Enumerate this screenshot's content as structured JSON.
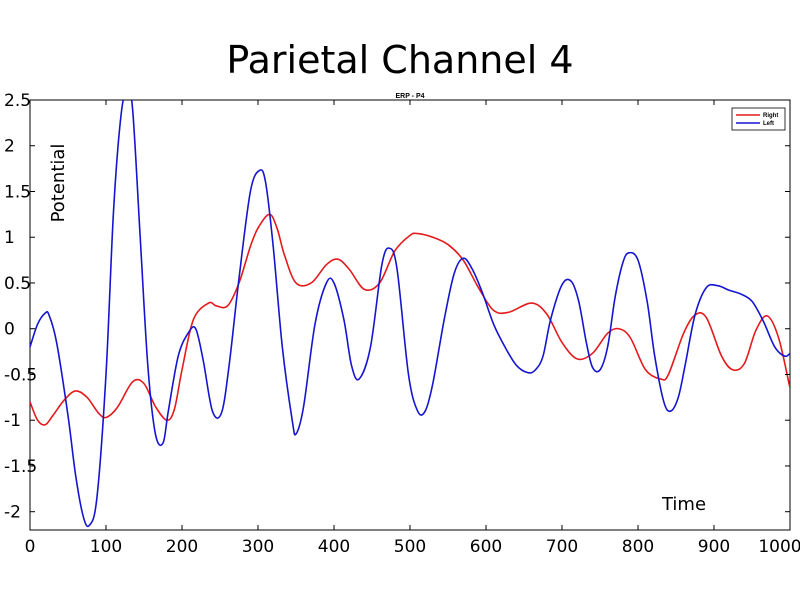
{
  "page_title": "Parietal Channel 4",
  "chart_data": {
    "type": "line",
    "title": "ERP - P4",
    "xlabel": "Time",
    "ylabel": "Potential",
    "xlim": [
      0,
      1000
    ],
    "ylim": [
      -2.2,
      2.5
    ],
    "x_ticks": [
      0,
      100,
      200,
      300,
      400,
      500,
      600,
      700,
      800,
      900,
      1000
    ],
    "y_ticks": [
      -2,
      -1.5,
      -1,
      -0.5,
      0,
      0.5,
      1,
      1.5,
      2,
      2.5
    ],
    "grid": false,
    "legend_position": "top-right",
    "series": [
      {
        "name": "Right",
        "color": "#e41a1c",
        "x": [
          0,
          10,
          20,
          30,
          45,
          60,
          75,
          90,
          100,
          115,
          135,
          150,
          165,
          180,
          190,
          200,
          215,
          235,
          245,
          260,
          275,
          290,
          300,
          315,
          325,
          335,
          350,
          370,
          390,
          405,
          420,
          440,
          460,
          480,
          500,
          510,
          530,
          550,
          570,
          590,
          610,
          630,
          660,
          680,
          700,
          720,
          740,
          760,
          775,
          790,
          810,
          830,
          840,
          860,
          875,
          890,
          910,
          925,
          940,
          955,
          970,
          985,
          1000
        ],
        "y": [
          -0.8,
          -1.0,
          -1.05,
          -0.95,
          -0.78,
          -0.68,
          -0.75,
          -0.92,
          -0.97,
          -0.86,
          -0.58,
          -0.6,
          -0.85,
          -1.0,
          -0.88,
          -0.45,
          0.1,
          0.28,
          0.25,
          0.25,
          0.5,
          0.9,
          1.1,
          1.25,
          1.1,
          0.8,
          0.5,
          0.5,
          0.7,
          0.76,
          0.65,
          0.43,
          0.5,
          0.85,
          1.02,
          1.04,
          1.0,
          0.92,
          0.75,
          0.45,
          0.2,
          0.18,
          0.28,
          0.16,
          -0.15,
          -0.33,
          -0.27,
          -0.05,
          0.0,
          -0.1,
          -0.45,
          -0.55,
          -0.5,
          -0.05,
          0.15,
          0.12,
          -0.3,
          -0.45,
          -0.38,
          -0.02,
          0.14,
          -0.1,
          -0.65
        ]
      },
      {
        "name": "Left",
        "color": "#1515d0",
        "x": [
          0,
          10,
          20,
          25,
          35,
          50,
          60,
          70,
          78,
          88,
          100,
          110,
          120,
          128,
          135,
          145,
          155,
          165,
          175,
          182,
          195,
          208,
          218,
          228,
          240,
          252,
          262,
          275,
          290,
          302,
          310,
          320,
          332,
          345,
          350,
          360,
          375,
          390,
          400,
          413,
          423,
          433,
          448,
          463,
          473,
          483,
          498,
          510,
          520,
          530,
          545,
          558,
          570,
          582,
          595,
          610,
          625,
          640,
          655,
          665,
          675,
          685,
          700,
          712,
          722,
          732,
          740,
          750,
          760,
          770,
          780,
          788,
          800,
          812,
          822,
          834,
          843,
          853,
          862,
          875,
          890,
          905,
          920,
          935,
          950,
          965,
          980,
          993,
          1000
        ],
        "y": [
          -0.2,
          0.05,
          0.17,
          0.15,
          -0.15,
          -0.95,
          -1.6,
          -2.05,
          -2.15,
          -1.85,
          -0.5,
          1.3,
          2.35,
          2.6,
          2.4,
          1.0,
          -0.4,
          -1.15,
          -1.25,
          -0.9,
          -0.3,
          -0.05,
          0.0,
          -0.35,
          -0.9,
          -0.92,
          -0.4,
          0.55,
          1.5,
          1.73,
          1.6,
          0.9,
          -0.2,
          -1.0,
          -1.15,
          -0.85,
          0.05,
          0.5,
          0.5,
          0.1,
          -0.4,
          -0.55,
          -0.2,
          0.7,
          0.88,
          0.65,
          -0.5,
          -0.9,
          -0.9,
          -0.6,
          0.1,
          0.6,
          0.77,
          0.65,
          0.4,
          0.05,
          -0.2,
          -0.4,
          -0.48,
          -0.45,
          -0.3,
          0.1,
          0.48,
          0.52,
          0.3,
          -0.15,
          -0.42,
          -0.45,
          -0.2,
          0.35,
          0.72,
          0.83,
          0.75,
          0.3,
          -0.3,
          -0.8,
          -0.9,
          -0.75,
          -0.4,
          0.15,
          0.45,
          0.47,
          0.42,
          0.38,
          0.3,
          0.08,
          -0.2,
          -0.3,
          -0.27
        ]
      }
    ]
  }
}
